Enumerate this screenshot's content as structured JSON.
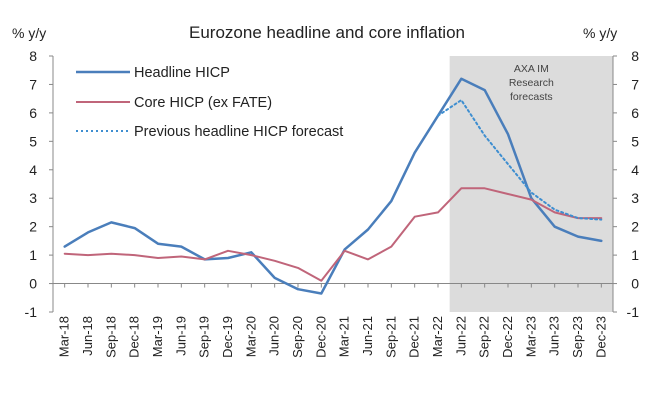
{
  "chart_data": {
    "type": "line",
    "title": "Eurozone headline and core inflation",
    "y_unit_left": "% y/y",
    "y_unit_right": "% y/y",
    "ylim": [
      -1,
      8
    ],
    "yticks": [
      "-1",
      "0",
      "1",
      "2",
      "3",
      "4",
      "5",
      "6",
      "7",
      "8"
    ],
    "grid": false,
    "legend_position": "top-left",
    "categories": [
      "Mar-18",
      "Jun-18",
      "Sep-18",
      "Dec-18",
      "Mar-19",
      "Jun-19",
      "Sep-19",
      "Dec-19",
      "Mar-20",
      "Jun-20",
      "Sep-20",
      "Dec-20",
      "Mar-21",
      "Jun-21",
      "Sep-21",
      "Dec-21",
      "Mar-22",
      "Jun-22",
      "Sep-22",
      "Dec-22",
      "Mar-23",
      "Jun-23",
      "Sep-23",
      "Dec-23"
    ],
    "forecast_shade": {
      "from": "Jun-22",
      "to": "Dec-23",
      "label_lines": [
        "AXA IM",
        "Research",
        "forecasts"
      ]
    },
    "series": [
      {
        "name": "Headline HICP",
        "color": "#4a7ebb",
        "style": "solid",
        "values": [
          1.3,
          1.8,
          2.15,
          1.95,
          1.4,
          1.3,
          0.85,
          0.9,
          1.1,
          0.2,
          -0.2,
          -0.35,
          1.2,
          1.9,
          2.9,
          4.6,
          5.9,
          7.2,
          6.8,
          5.25,
          3.0,
          2.0,
          1.65,
          1.5
        ]
      },
      {
        "name": "Core HICP (ex FATE)",
        "color": "#c0657a",
        "style": "solid",
        "values": [
          1.05,
          1.0,
          1.05,
          1.0,
          0.9,
          0.95,
          0.85,
          1.15,
          1.0,
          0.8,
          0.55,
          0.1,
          1.15,
          0.85,
          1.3,
          2.35,
          2.5,
          3.35,
          3.35,
          3.15,
          2.95,
          2.5,
          2.3,
          2.3
        ]
      },
      {
        "name": "Previous headline HICP forecast",
        "color": "#3e8ed0",
        "style": "dotted",
        "values": [
          null,
          null,
          null,
          null,
          null,
          null,
          null,
          null,
          null,
          null,
          null,
          null,
          null,
          null,
          null,
          null,
          5.9,
          6.45,
          5.2,
          4.2,
          3.2,
          2.6,
          2.3,
          2.25
        ]
      }
    ]
  }
}
